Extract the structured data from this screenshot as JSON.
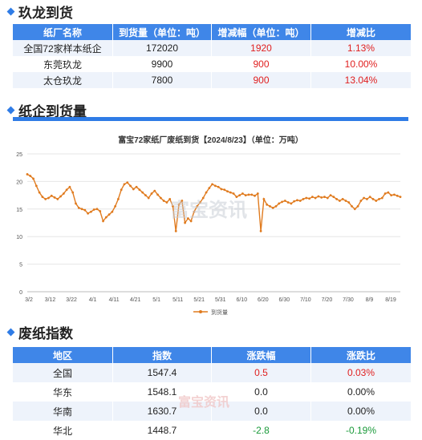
{
  "sections": {
    "arrivals_title": "玖龙到货",
    "paper_title": "纸企到货量",
    "index_title": "废纸指数"
  },
  "arrivals_table": {
    "headers": [
      "纸厂名称",
      "到货量（单位：吨）",
      "增减幅（单位：吨）",
      "增减比"
    ],
    "rows": [
      {
        "name": "全国72家样本纸企",
        "qty": "172020",
        "change": "1920",
        "ratio": "1.13%"
      },
      {
        "name": "东莞玖龙",
        "qty": "9900",
        "change": "900",
        "ratio": "10.00%"
      },
      {
        "name": "太仓玖龙",
        "qty": "7800",
        "change": "900",
        "ratio": "13.04%"
      }
    ]
  },
  "chart_data": {
    "type": "line",
    "title": "富宝72家纸厂废纸到货【2024/8/23】（单位：万吨）",
    "legend": "到货量",
    "legend_position": "bottom",
    "ylim": [
      0,
      25
    ],
    "yticks": [
      0,
      5,
      10,
      15,
      20,
      25
    ],
    "xticks": [
      "3/2",
      "3/12",
      "3/22",
      "4/1",
      "4/11",
      "4/21",
      "5/1",
      "5/11",
      "5/21",
      "5/31",
      "6/10",
      "6/20",
      "6/30",
      "7/10",
      "7/20",
      "7/30",
      "8/9",
      "8/19"
    ],
    "grid": "horizontal",
    "color": "#e07b1f",
    "series": [
      {
        "values": [
          21.3,
          21.0,
          20.5,
          19.2,
          18.0,
          17.2,
          16.8,
          17.0,
          17.4,
          17.1,
          16.8,
          17.3,
          17.8,
          18.5,
          19.0,
          18.0,
          16.0,
          15.2,
          15.0,
          14.8,
          14.2,
          14.5,
          14.9,
          15.0,
          14.6,
          12.8,
          13.5,
          14.0,
          14.5,
          15.5,
          16.8,
          18.5,
          19.5,
          19.8,
          19.2,
          18.6,
          19.0,
          18.5,
          18.0,
          17.5,
          17.0,
          17.8,
          18.3,
          17.6,
          17.0,
          16.5,
          16.2,
          16.8,
          15.5,
          11.0,
          15.8,
          16.5,
          12.5,
          13.3,
          12.8,
          14.5,
          15.5,
          16.2,
          17.0,
          18.0,
          18.8,
          19.5,
          19.2,
          19.0,
          18.6,
          18.5,
          18.2,
          18.0,
          17.8,
          17.2,
          17.5,
          17.8,
          17.5,
          17.6,
          17.6,
          17.4,
          17.8,
          11.0,
          16.8,
          15.8,
          15.5,
          15.2,
          15.5,
          16.0,
          16.3,
          16.5,
          16.2,
          16.0,
          16.4,
          16.6,
          16.5,
          16.8,
          17.0,
          16.9,
          17.2,
          17.0,
          17.3,
          17.1,
          17.2,
          17.0,
          17.5,
          17.2,
          16.8,
          16.5,
          16.8,
          16.5,
          16.2,
          15.5,
          15.0,
          15.5,
          16.5,
          17.0,
          16.8,
          17.2,
          16.8,
          16.5,
          16.8,
          17.0,
          17.8,
          18.0,
          17.5,
          17.6,
          17.4,
          17.2
        ]
      }
    ]
  },
  "watermark": "富宝资讯",
  "index_table": {
    "headers": [
      "地区",
      "指数",
      "涨跌幅",
      "涨跌比"
    ],
    "rows": [
      {
        "region": "全国",
        "index": "1547.4",
        "change": "0.5",
        "ratio": "0.03%",
        "dir": "up"
      },
      {
        "region": "华东",
        "index": "1548.1",
        "change": "0.0",
        "ratio": "0.00%",
        "dir": "flat"
      },
      {
        "region": "华南",
        "index": "1630.7",
        "change": "0.0",
        "ratio": "0.00%",
        "dir": "flat"
      },
      {
        "region": "华北",
        "index": "1448.7",
        "change": "-2.8",
        "ratio": "-0.19%",
        "dir": "down"
      }
    ]
  }
}
